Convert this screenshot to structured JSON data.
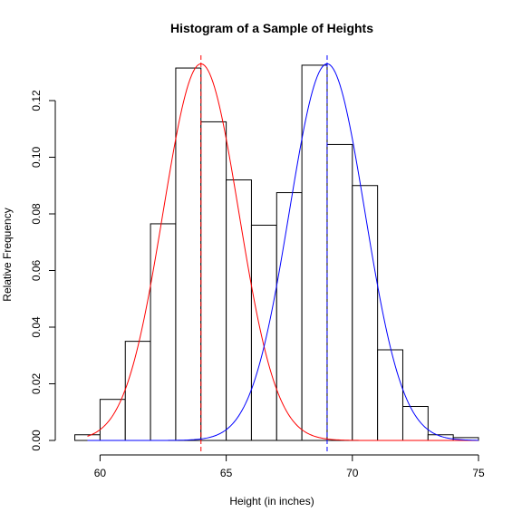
{
  "chart_data": {
    "type": "bar",
    "title": "Histogram of a Sample of Heights",
    "xlabel": "Height (in inches)",
    "ylabel": "Relative Frequency",
    "xlim": [
      58.8,
      75
    ],
    "ylim": [
      0,
      0.136
    ],
    "x_ticks": [
      60,
      65,
      70,
      75
    ],
    "y_ticks": [
      0.0,
      0.02,
      0.04,
      0.06,
      0.08,
      0.1,
      0.12
    ],
    "y_tick_labels": [
      "0.00",
      "0.02",
      "0.04",
      "0.06",
      "0.08",
      "0.10",
      "0.12"
    ],
    "bin_edges": [
      59,
      60,
      61,
      62,
      63,
      64,
      65,
      66,
      67,
      68,
      69,
      70,
      71,
      72,
      73,
      74,
      75
    ],
    "values": [
      0.002,
      0.0145,
      0.035,
      0.0765,
      0.1315,
      0.1125,
      0.092,
      0.076,
      0.0875,
      0.1325,
      0.1045,
      0.09,
      0.032,
      0.012,
      0.002,
      0.001
    ],
    "bar_fill": "#ffffff",
    "bar_stroke": "#000000",
    "curves": [
      {
        "color": "#ff0000",
        "mean": 64,
        "sd": 1.5,
        "scale": 0.5,
        "x_range": [
          59.5,
          75
        ]
      },
      {
        "color": "#0000ff",
        "mean": 69,
        "sd": 1.5,
        "scale": 0.5,
        "x_range": [
          59.5,
          75
        ]
      }
    ],
    "vlines": [
      {
        "x": 64,
        "color": "#ff0000",
        "style": "dashed"
      },
      {
        "x": 69,
        "color": "#0000ff",
        "style": "dashed"
      }
    ],
    "grid": false,
    "legend": "none"
  }
}
